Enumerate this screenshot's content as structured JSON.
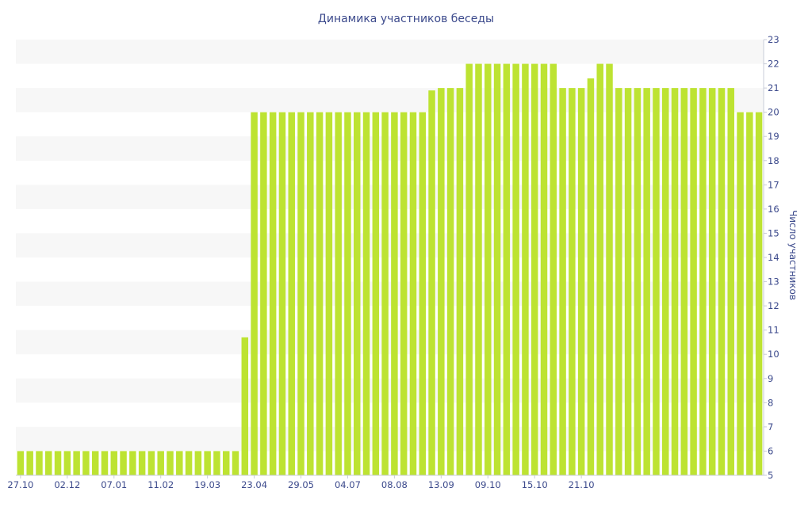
{
  "chart_data": {
    "type": "bar",
    "title": "Динамика участников беседы",
    "xlabel": "",
    "ylabel": "Число участников",
    "ylim": [
      5,
      23
    ],
    "ytick_step": 1,
    "y_axis_side": "right",
    "grid": "alternating horizontal bands",
    "bar_color": "#bde332",
    "band_color": "#f7f7f7",
    "text_color": "#3c4a8c",
    "x_tick_labels": [
      "27.10",
      "02.12",
      "07.01",
      "11.02",
      "19.03",
      "23.04",
      "29.05",
      "04.07",
      "08.08",
      "13.09",
      "09.10",
      "15.10",
      "21.10"
    ],
    "x_tick_positions": [
      0,
      5,
      10,
      15,
      20,
      25,
      30,
      35,
      40,
      45,
      50,
      55,
      60
    ],
    "values": [
      6,
      6,
      6,
      6,
      6,
      6,
      6,
      6,
      6,
      6,
      6,
      6,
      6,
      6,
      6,
      6,
      6,
      6,
      6,
      6,
      6,
      6,
      6,
      6,
      10.7,
      20,
      20,
      20,
      20,
      20,
      20,
      20,
      20,
      20,
      20,
      20,
      20,
      20,
      20,
      20,
      20,
      20,
      20,
      20,
      20.9,
      21,
      21,
      21,
      22,
      22,
      22,
      22,
      22,
      22,
      22,
      22,
      22,
      22,
      21,
      21,
      21,
      21.4,
      22,
      22,
      21,
      21,
      21,
      21,
      21,
      21,
      21,
      21,
      21,
      21,
      21,
      21,
      21,
      20,
      20,
      20
    ]
  }
}
